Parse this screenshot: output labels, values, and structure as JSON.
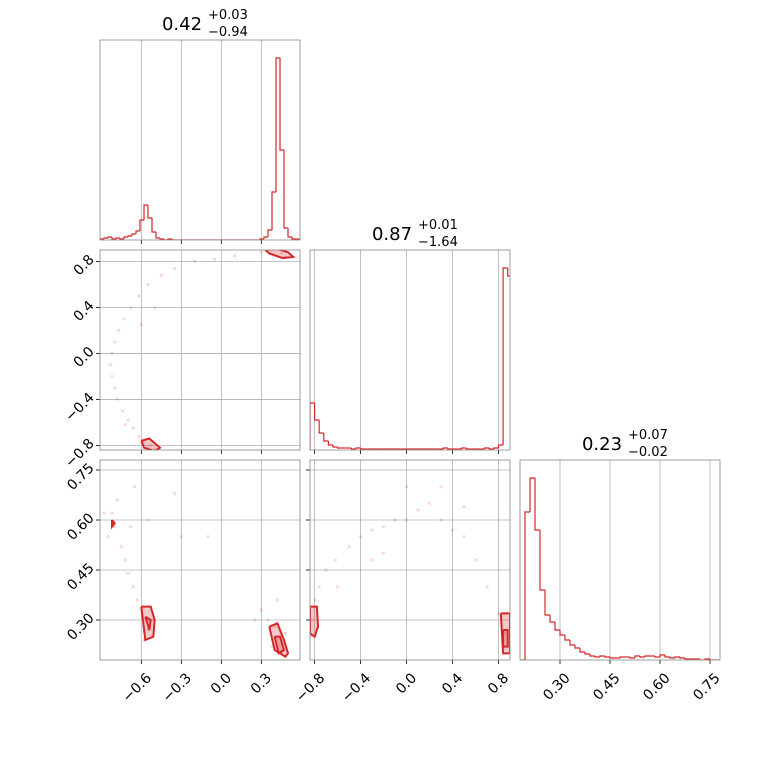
{
  "chart_data": [
    {
      "type": "histogram",
      "title": "0.42",
      "title_sup": "+0.03",
      "title_sub": "−0.94",
      "color": "#d62728",
      "bins": [
        -0.91,
        -0.88,
        -0.85,
        -0.82,
        -0.79,
        -0.76,
        -0.73,
        -0.7,
        -0.67,
        -0.64,
        -0.61,
        -0.58,
        -0.55,
        -0.52,
        -0.49,
        -0.46,
        -0.43,
        -0.4,
        -0.37,
        -0.34,
        -0.31,
        -0.28,
        -0.25,
        -0.22,
        -0.19,
        -0.16,
        -0.13,
        -0.1,
        -0.07,
        -0.04,
        -0.01,
        0.02,
        0.05,
        0.08,
        0.11,
        0.14,
        0.17,
        0.2,
        0.23,
        0.26,
        0.29,
        0.32,
        0.35,
        0.38,
        0.41,
        0.44,
        0.47,
        0.5,
        0.53,
        0.56,
        0.59
      ],
      "counts": [
        1,
        2,
        3,
        1,
        2,
        1,
        3,
        4,
        6,
        9,
        20,
        35,
        22,
        8,
        2,
        1,
        0,
        1,
        0,
        0,
        0,
        0,
        0,
        0,
        0,
        0,
        0,
        0,
        0,
        0,
        0,
        0,
        0,
        0,
        0,
        0,
        0,
        0,
        0,
        0,
        1,
        3,
        10,
        48,
        182,
        90,
        12,
        3,
        1,
        1
      ],
      "xlim": [
        -0.91,
        0.59
      ],
      "ylim": [
        0,
        200
      ],
      "xticks": [
        {
          "value": -0.6,
          "label": "−0.6"
        },
        {
          "value": -0.3,
          "label": "−0.3"
        },
        {
          "value": 0,
          "label": "0.0"
        },
        0.3
      ],
      "grid": true
    },
    {
      "type": "scatter",
      "color": "#d62728",
      "samples": {
        "x": [
          -0.55,
          -0.58,
          -0.62,
          -0.66,
          -0.7,
          -0.74,
          -0.78,
          -0.8,
          -0.82,
          -0.83,
          -0.82,
          -0.8,
          -0.77,
          -0.73,
          -0.68,
          -0.62,
          -0.55,
          -0.45,
          -0.35,
          -0.2,
          -0.05,
          0.1,
          0.3,
          -0.6,
          -0.5,
          -0.72,
          -0.53,
          -0.5,
          0.45,
          0.48
        ],
        "y": [
          -0.82,
          -0.78,
          -0.72,
          -0.65,
          -0.58,
          -0.5,
          -0.4,
          -0.3,
          -0.2,
          -0.1,
          0,
          0.1,
          0.2,
          0.3,
          0.4,
          0.5,
          0.6,
          0.68,
          0.74,
          0.8,
          0.82,
          0.85,
          0.88,
          0.25,
          0.4,
          -0.62,
          -0.8,
          -0.83,
          0.87,
          0.84
        ]
      },
      "contours": [
        {
          "x": [
            -0.6,
            -0.54,
            -0.46,
            -0.5,
            -0.58,
            -0.6
          ],
          "y": [
            -0.76,
            -0.74,
            -0.82,
            -0.85,
            -0.82,
            -0.76
          ]
        },
        {
          "x": [
            0.33,
            0.42,
            0.5,
            0.54,
            0.46,
            0.36,
            0.33
          ],
          "y": [
            0.9,
            0.91,
            0.88,
            0.84,
            0.83,
            0.87,
            0.9
          ]
        }
      ],
      "xlim": [
        -0.91,
        0.59
      ],
      "ylim": [
        -0.84,
        0.9
      ],
      "xticks": [
        {
          "value": -0.6,
          "label": "−0.6"
        },
        {
          "value": -0.3,
          "label": "−0.3"
        },
        {
          "value": 0,
          "label": "0.0"
        },
        0.3
      ],
      "yticks": [
        {
          "value": -0.8,
          "label": "−0.8"
        },
        {
          "value": -0.4,
          "label": "−0.4"
        },
        {
          "value": 0,
          "label": "0.0"
        },
        0.4,
        0.8
      ],
      "grid": true
    },
    {
      "type": "histogram",
      "title": "0.87",
      "title_sup": "+0.01",
      "title_sub": "−1.64",
      "color": "#d62728",
      "bins": [
        -0.84,
        -0.8,
        -0.76,
        -0.72,
        -0.68,
        -0.64,
        -0.6,
        -0.56,
        -0.52,
        -0.48,
        -0.44,
        -0.4,
        -0.36,
        -0.32,
        -0.28,
        -0.24,
        -0.2,
        -0.16,
        -0.12,
        -0.08,
        -0.04,
        0,
        0.04,
        0.08,
        0.12,
        0.16,
        0.2,
        0.24,
        0.28,
        0.32,
        0.36,
        0.4,
        0.44,
        0.48,
        0.52,
        0.56,
        0.6,
        0.64,
        0.68,
        0.72,
        0.76,
        0.8,
        0.84,
        0.88,
        0.92
      ],
      "counts": [
        47,
        30,
        17,
        9,
        5,
        3,
        2,
        2,
        2,
        1,
        2,
        1,
        1,
        1,
        1,
        1,
        1,
        1,
        1,
        1,
        1,
        1,
        1,
        1,
        1,
        1,
        1,
        1,
        1,
        2,
        1,
        1,
        1,
        2,
        1,
        1,
        1,
        1,
        2,
        1,
        2,
        5,
        182,
        174
      ],
      "xlim": [
        -0.84,
        0.9
      ],
      "ylim": [
        0,
        200
      ],
      "xticks": [
        {
          "value": -0.8,
          "label": "−0.8"
        },
        {
          "value": -0.4,
          "label": "−0.4"
        },
        {
          "value": 0,
          "label": "0.0"
        },
        0.4,
        0.8
      ],
      "grid": true
    },
    {
      "type": "scatter",
      "color": "#d62728",
      "samples": {
        "x": [
          -0.8,
          -0.82,
          -0.78,
          -0.85,
          -0.75,
          -0.72,
          -0.7,
          -0.66,
          -0.63,
          -0.6,
          -0.55,
          -0.58,
          -0.52,
          -0.65,
          -0.55,
          -0.3,
          -0.35,
          0.3,
          0.35,
          0.38,
          0.45,
          0.48,
          0.4,
          0.42,
          0.25,
          -0.88,
          -0.68,
          -0.1
        ],
        "y": [
          0.58,
          0.62,
          0.66,
          0.55,
          0.52,
          0.48,
          0.44,
          0.4,
          0.36,
          0.33,
          0.27,
          0.24,
          0.3,
          0.7,
          0.6,
          0.55,
          0.68,
          0.33,
          0.3,
          0.22,
          0.2,
          0.26,
          0.28,
          0.36,
          0.3,
          0.62,
          0.58,
          0.55
        ]
      },
      "contours": [
        {
          "x": [
            -0.6,
            -0.53,
            -0.5,
            -0.51,
            -0.57,
            -0.6
          ],
          "y": [
            0.34,
            0.34,
            0.3,
            0.25,
            0.24,
            0.34
          ]
        },
        {
          "x": [
            -0.57,
            -0.53,
            -0.54,
            -0.57
          ],
          "y": [
            0.31,
            0.3,
            0.27,
            0.31
          ]
        },
        {
          "x": [
            0.36,
            0.42,
            0.47,
            0.5,
            0.48,
            0.4,
            0.36
          ],
          "y": [
            0.28,
            0.29,
            0.24,
            0.2,
            0.19,
            0.21,
            0.28
          ]
        },
        {
          "x": [
            0.4,
            0.44,
            0.47,
            0.43,
            0.4
          ],
          "y": [
            0.25,
            0.25,
            0.21,
            0.2,
            0.25
          ]
        },
        {
          "x": [
            -0.82,
            -0.8,
            -0.82,
            -0.82
          ],
          "y": [
            0.6,
            0.59,
            0.58,
            0.6
          ]
        }
      ],
      "xlim": [
        -0.91,
        0.59
      ],
      "ylim": [
        0.18,
        0.78
      ],
      "xticks": [
        {
          "value": -0.6,
          "label": "−0.6"
        },
        {
          "value": -0.3,
          "label": "−0.3"
        },
        {
          "value": 0,
          "label": "0.0"
        },
        0.3
      ],
      "yticks": [
        {
          "value": 0.3,
          "label": "0.30"
        },
        0.45,
        {
          "value": 0.6,
          "label": "0.60"
        },
        0.75
      ],
      "grid": true
    },
    {
      "type": "scatter",
      "color": "#d62728",
      "samples": {
        "x": [
          -0.82,
          -0.8,
          -0.76,
          -0.7,
          -0.62,
          -0.5,
          -0.4,
          -0.3,
          -0.2,
          -0.1,
          0,
          0.1,
          0.2,
          0.3,
          0.4,
          0.5,
          0.6,
          0.7,
          0.8,
          0.86,
          0,
          -0.2,
          0.5,
          -0.6,
          -0.84,
          0.88,
          0.3,
          -0.3
        ],
        "y": [
          0.3,
          0.36,
          0.4,
          0.45,
          0.48,
          0.52,
          0.55,
          0.57,
          0.58,
          0.6,
          0.6,
          0.63,
          0.65,
          0.6,
          0.57,
          0.55,
          0.48,
          0.4,
          0.32,
          0.26,
          0.7,
          0.5,
          0.64,
          0.4,
          0.25,
          0.22,
          0.7,
          0.48
        ]
      },
      "contours": [
        {
          "x": [
            -0.84,
            -0.78,
            -0.77,
            -0.8,
            -0.84,
            -0.84
          ],
          "y": [
            0.34,
            0.34,
            0.28,
            0.25,
            0.26,
            0.34
          ]
        },
        {
          "x": [
            0.82,
            0.9,
            0.9,
            0.84,
            0.82
          ],
          "y": [
            0.32,
            0.32,
            0.2,
            0.2,
            0.32
          ]
        },
        {
          "x": [
            0.84,
            0.88,
            0.88,
            0.84,
            0.84
          ],
          "y": [
            0.27,
            0.27,
            0.22,
            0.22,
            0.27
          ]
        }
      ],
      "xlim": [
        -0.84,
        0.9
      ],
      "ylim": [
        0.18,
        0.78
      ],
      "xticks": [
        {
          "value": -0.8,
          "label": "−0.8"
        },
        {
          "value": -0.4,
          "label": "−0.4"
        },
        {
          "value": 0,
          "label": "0.0"
        },
        0.4,
        0.8
      ],
      "yticks": [
        {
          "value": 0.3,
          "label": "0.30"
        },
        0.45,
        {
          "value": 0.6,
          "label": "0.60"
        },
        0.75
      ],
      "grid": true
    },
    {
      "type": "histogram",
      "title": "0.23",
      "title_sup": "+0.07",
      "title_sub": "−0.02",
      "color": "#d62728",
      "bins": [
        0.18,
        0.195,
        0.21,
        0.225,
        0.24,
        0.255,
        0.27,
        0.285,
        0.3,
        0.315,
        0.33,
        0.345,
        0.36,
        0.375,
        0.39,
        0.405,
        0.42,
        0.435,
        0.45,
        0.465,
        0.48,
        0.495,
        0.51,
        0.525,
        0.54,
        0.555,
        0.57,
        0.585,
        0.6,
        0.615,
        0.63,
        0.645,
        0.66,
        0.675,
        0.69,
        0.705,
        0.72,
        0.735,
        0.75,
        0.765,
        0.78
      ],
      "counts": [
        0,
        148,
        182,
        130,
        70,
        45,
        38,
        30,
        25,
        20,
        15,
        12,
        8,
        6,
        4,
        3,
        4,
        3,
        2,
        2,
        3,
        3,
        2,
        4,
        3,
        4,
        4,
        3,
        5,
        3,
        2,
        3,
        2,
        1,
        1,
        1,
        0,
        1,
        0,
        0
      ],
      "xlim": [
        0.18,
        0.78
      ],
      "ylim": [
        0,
        200
      ],
      "xticks": [
        {
          "value": 0.3,
          "label": "0.30"
        },
        0.45,
        {
          "value": 0.6,
          "label": "0.60"
        },
        0.75
      ],
      "grid": true
    }
  ]
}
